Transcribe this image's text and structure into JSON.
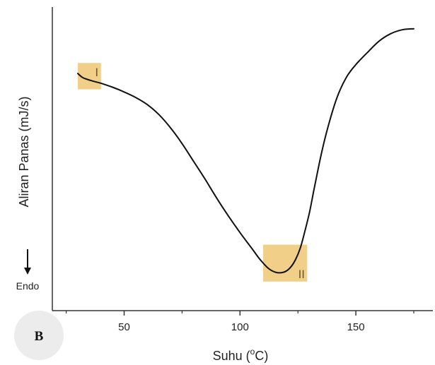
{
  "chart_data": {
    "type": "line",
    "title": "",
    "xlabel": "Suhu (°C)",
    "xlabel_parts": {
      "prefix": "Suhu (",
      "superscript": "o",
      "suffix": "C)"
    },
    "ylabel": "Aliran Panas (mJ/s)",
    "xlim": [
      0,
      185
    ],
    "ylim": [
      0,
      100
    ],
    "x_ticks": [
      50,
      100,
      150
    ],
    "x_tick_labels": [
      "50",
      "100",
      "150"
    ],
    "x_minor_ticks": [
      25,
      75,
      125,
      175
    ],
    "y_ticks_shown": false,
    "grid": false,
    "endo_label": "Endo",
    "endo_arrow_direction": "down",
    "panel_label": "B",
    "regions": [
      {
        "label": "I",
        "x": [
          30,
          40
        ],
        "y": [
          76,
          86
        ],
        "color": "#f1cf89"
      },
      {
        "label": "II",
        "x": [
          110,
          129
        ],
        "y": [
          3,
          17
        ],
        "color": "#f1cf89"
      }
    ],
    "series": [
      {
        "color": "#111111",
        "points": [
          [
            30,
            82
          ],
          [
            32,
            80.5
          ],
          [
            34,
            79.8
          ],
          [
            37,
            79
          ],
          [
            40,
            78.3
          ],
          [
            45,
            76.8
          ],
          [
            50,
            75
          ],
          [
            55,
            72.9
          ],
          [
            60,
            70.2
          ],
          [
            65,
            66.4
          ],
          [
            70,
            61.4
          ],
          [
            75,
            55.4
          ],
          [
            80,
            48.6
          ],
          [
            85,
            41.8
          ],
          [
            90,
            34.6
          ],
          [
            95,
            27.9
          ],
          [
            100,
            21.6
          ],
          [
            105,
            15.7
          ],
          [
            108,
            12.1
          ],
          [
            110,
            10
          ],
          [
            112,
            8.2
          ],
          [
            114,
            7
          ],
          [
            116,
            6.4
          ],
          [
            118,
            6.4
          ],
          [
            120,
            7
          ],
          [
            122,
            8.6
          ],
          [
            124,
            11.4
          ],
          [
            126,
            15.7
          ],
          [
            128,
            22.1
          ],
          [
            130,
            29.3
          ],
          [
            132,
            38.2
          ],
          [
            135,
            51.1
          ],
          [
            138,
            61.8
          ],
          [
            142,
            73.2
          ],
          [
            146,
            80.7
          ],
          [
            150,
            85.4
          ],
          [
            155,
            90
          ],
          [
            160,
            94.3
          ],
          [
            165,
            97.1
          ],
          [
            170,
            98.6
          ],
          [
            175,
            99
          ]
        ]
      }
    ]
  }
}
